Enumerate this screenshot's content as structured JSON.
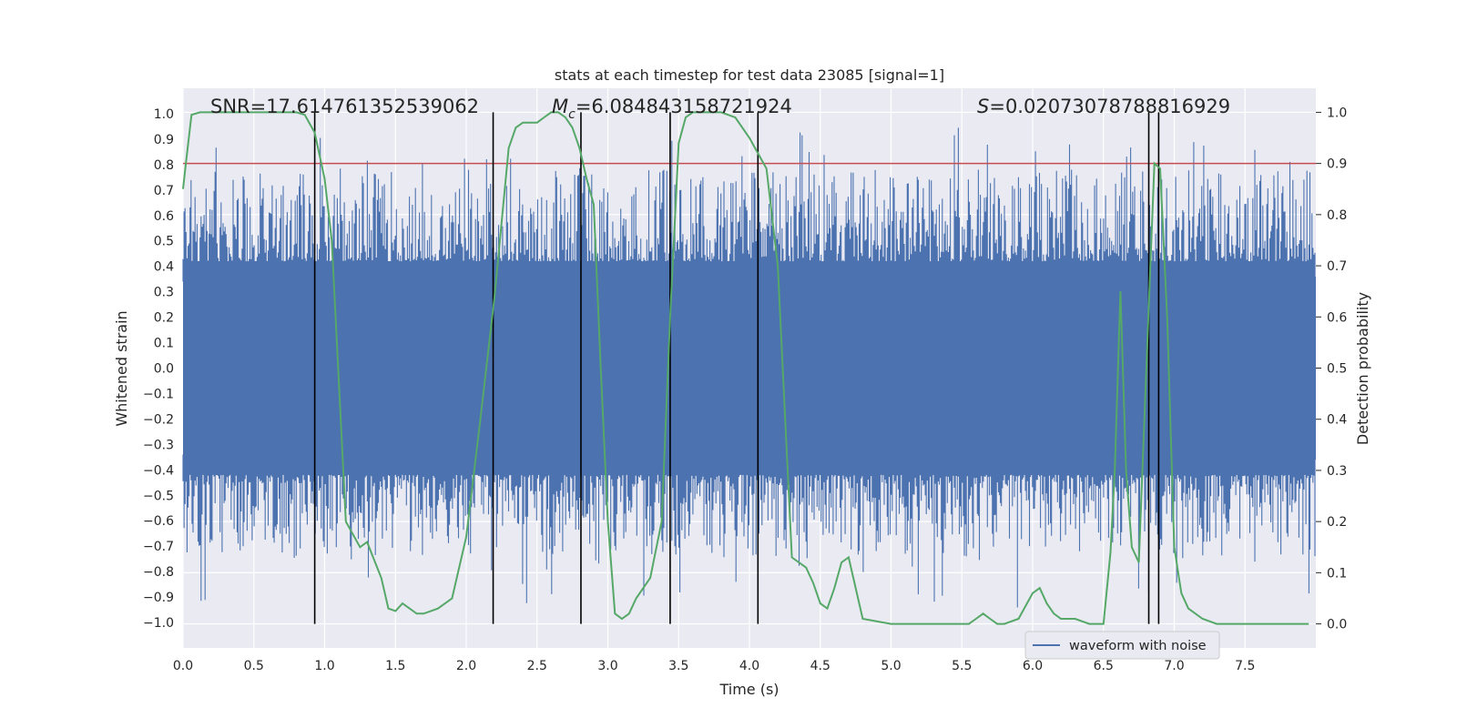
{
  "chart_data": {
    "type": "line",
    "title": "stats at each timestep for test data 23085 [signal=1]",
    "xlabel": "Time (s)",
    "ylabel": "Whitened strain",
    "ylabel_right": "Detection probability",
    "xlim": [
      0.0,
      8.0
    ],
    "ylim": [
      -1.1,
      1.1
    ],
    "ylim_right": [
      -0.047,
      1.047
    ],
    "x_ticks": [
      "0.0",
      "0.5",
      "1.0",
      "1.5",
      "2.0",
      "2.5",
      "3.0",
      "3.5",
      "4.0",
      "4.5",
      "5.0",
      "5.5",
      "6.0",
      "6.5",
      "7.0",
      "7.5"
    ],
    "y_ticks": [
      "1.0",
      "0.9",
      "0.8",
      "0.7",
      "0.6",
      "0.5",
      "0.4",
      "0.3",
      "0.2",
      "0.1",
      "0.0",
      "−0.1",
      "−0.2",
      "−0.3",
      "−0.4",
      "−0.5",
      "−0.6",
      "−0.7",
      "−0.8",
      "−0.9",
      "−1.0"
    ],
    "y_ticks_right": [
      "1.0",
      "0.9",
      "0.8",
      "0.7",
      "0.6",
      "0.5",
      "0.4",
      "0.3",
      "0.2",
      "0.1",
      "0.0"
    ],
    "grid": true,
    "legend": {
      "position": "bottom-right",
      "entries": [
        "waveform with noise"
      ]
    },
    "annotations": {
      "snr": "SNR=17.614761352539062",
      "mc_symbol": "M",
      "mc_sub": "c",
      "mc_value": "=6.084843158721924",
      "s_symbol": "S",
      "s_value": "=0.02073078788816929"
    },
    "threshold": {
      "value": 0.9,
      "axis": "right",
      "color": "#c44e52"
    },
    "vlines": [
      0.93,
      2.19,
      2.81,
      3.44,
      4.06,
      6.82,
      6.89
    ],
    "waveform": {
      "name": "waveform with noise",
      "color": "#4c72b0",
      "duration": 8.0,
      "core_amplitude": 0.36,
      "seed": 23085
    },
    "probability": {
      "name": "Detection probability",
      "color": "#55a868",
      "x": [
        0.0,
        0.02,
        0.06,
        0.12,
        0.25,
        0.4,
        0.55,
        0.7,
        0.8,
        0.86,
        0.93,
        1.0,
        1.05,
        1.15,
        1.25,
        1.3,
        1.4,
        1.45,
        1.5,
        1.55,
        1.6,
        1.65,
        1.7,
        1.8,
        1.9,
        2.0,
        2.1,
        2.2,
        2.3,
        2.35,
        2.4,
        2.5,
        2.55,
        2.6,
        2.65,
        2.7,
        2.75,
        2.8,
        2.85,
        2.9,
        2.95,
        3.0,
        3.05,
        3.1,
        3.15,
        3.2,
        3.3,
        3.38,
        3.44,
        3.5,
        3.55,
        3.6,
        3.7,
        3.8,
        3.9,
        4.0,
        4.06,
        4.12,
        4.2,
        4.3,
        4.4,
        4.45,
        4.5,
        4.55,
        4.6,
        4.65,
        4.7,
        4.8,
        5.0,
        5.2,
        5.4,
        5.55,
        5.6,
        5.65,
        5.7,
        5.75,
        5.8,
        5.9,
        6.0,
        6.05,
        6.1,
        6.15,
        6.2,
        6.3,
        6.4,
        6.45,
        6.5,
        6.55,
        6.58,
        6.62,
        6.66,
        6.7,
        6.75,
        6.82,
        6.86,
        6.9,
        6.95,
        7.0,
        7.05,
        7.1,
        7.2,
        7.3,
        7.5,
        7.7,
        7.8,
        7.95
      ],
      "y": [
        0.85,
        0.9,
        0.995,
        1.0,
        1.0,
        1.0,
        1.0,
        1.0,
        1.0,
        0.995,
        0.96,
        0.87,
        0.75,
        0.2,
        0.15,
        0.16,
        0.09,
        0.03,
        0.025,
        0.04,
        0.03,
        0.02,
        0.02,
        0.03,
        0.05,
        0.17,
        0.4,
        0.64,
        0.93,
        0.97,
        0.98,
        0.98,
        0.99,
        1.0,
        1.0,
        0.99,
        0.97,
        0.93,
        0.87,
        0.82,
        0.5,
        0.2,
        0.02,
        0.01,
        0.02,
        0.05,
        0.09,
        0.2,
        0.6,
        0.94,
        0.99,
        1.0,
        1.0,
        1.0,
        0.99,
        0.95,
        0.92,
        0.89,
        0.7,
        0.13,
        0.11,
        0.08,
        0.04,
        0.03,
        0.07,
        0.12,
        0.13,
        0.01,
        0.0,
        0.0,
        0.0,
        0.0,
        0.01,
        0.02,
        0.01,
        0.0,
        0.0,
        0.01,
        0.06,
        0.07,
        0.04,
        0.02,
        0.01,
        0.01,
        0.0,
        0.0,
        0.0,
        0.14,
        0.3,
        0.65,
        0.3,
        0.15,
        0.12,
        0.62,
        0.9,
        0.89,
        0.6,
        0.15,
        0.06,
        0.03,
        0.01,
        0.0,
        0.0,
        0.0,
        0.0,
        0.0
      ]
    }
  }
}
